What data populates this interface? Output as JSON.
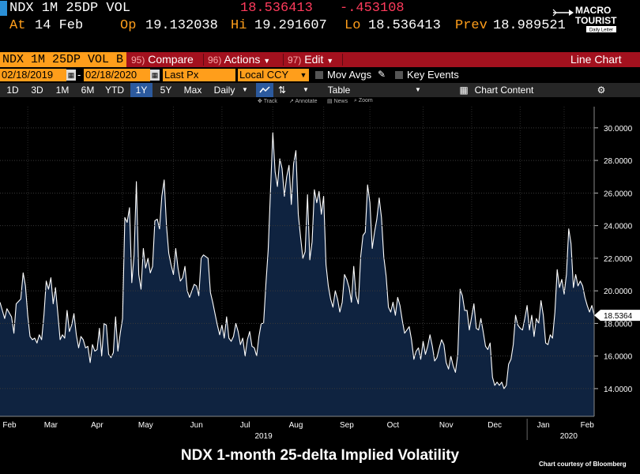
{
  "ticker": {
    "name": "NDX 1M 25DP VOL",
    "last": "18.536413",
    "change": "-.453108"
  },
  "stats": {
    "at_label": "At",
    "at_value": "14 Feb",
    "open_label": "Op",
    "open_value": "19.132038",
    "high_label": "Hi",
    "high_value": "19.291607",
    "low_label": "Lo",
    "low_value": "18.536413",
    "prev_label": "Prev",
    "prev_value": "18.989521"
  },
  "logo": {
    "line1": "MACRO",
    "line2": "TOURIST",
    "tagline": "Daily Letter"
  },
  "menu": {
    "security": "NDX 1M 25DP VOL B",
    "compare_num": "95)",
    "compare_label": "Compare",
    "actions_num": "96)",
    "actions_label": "Actions",
    "edit_num": "97)",
    "edit_label": "Edit",
    "view_label": "Line Chart"
  },
  "dates": {
    "start": "02/18/2019",
    "end": "02/18/2020",
    "field": "Last Px",
    "currency": "Local CCY",
    "mov_avgs": "Mov Avgs",
    "key_events": "Key Events"
  },
  "range": {
    "buttons": [
      "1D",
      "3D",
      "1M",
      "6M",
      "YTD",
      "1Y",
      "5Y",
      "Max"
    ],
    "selected": "1Y",
    "period": "Daily",
    "table": "Table",
    "chart_content": "Chart Content"
  },
  "tools": {
    "track": "Track",
    "annotate": "Annotate",
    "news": "News",
    "zoom": "Zoom"
  },
  "colors": {
    "accent_orange": "#ff9e1b",
    "menu_red": "#a3111e",
    "area_fill": "#0f2340",
    "line": "#ffffff"
  },
  "caption": "NDX 1-month 25-delta Implied Volatility",
  "credit": "Chart courtesy of Bloomberg",
  "chart_data": {
    "type": "area",
    "title": "NDX 1-month 25-delta Implied Volatility",
    "xlabel": "",
    "ylabel": "",
    "ylim": [
      12.3,
      31.3
    ],
    "yticks": [
      14,
      16,
      18,
      20,
      22,
      24,
      26,
      28,
      30
    ],
    "ytick_labels": [
      "14.0000",
      "16.0000",
      "18.0000",
      "20.0000",
      "22.0000",
      "24.0000",
      "26.0000",
      "28.0000",
      "30.0000"
    ],
    "x_index_range": [
      0,
      250
    ],
    "month_labels": [
      {
        "label": "Feb",
        "i": 2
      },
      {
        "label": "Mar",
        "i": 22
      },
      {
        "label": "Apr",
        "i": 42
      },
      {
        "label": "May",
        "i": 63
      },
      {
        "label": "Jun",
        "i": 85
      },
      {
        "label": "Jul",
        "i": 106
      },
      {
        "label": "Aug",
        "i": 128
      },
      {
        "label": "Sep",
        "i": 150
      },
      {
        "label": "Oct",
        "i": 170
      },
      {
        "label": "Nov",
        "i": 193
      },
      {
        "label": "Dec",
        "i": 214
      },
      {
        "label": "Jan",
        "i": 235
      },
      {
        "label": "Feb",
        "i": 254
      }
    ],
    "year_labels": [
      {
        "label": "2019",
        "i": 114
      },
      {
        "label": "2020",
        "i": 246
      }
    ],
    "last_value_label": "18.5364",
    "series": [
      {
        "name": "NDX 1M 25DP VOL",
        "points": [
          [
            0,
            19.3
          ],
          [
            2,
            18.3
          ],
          [
            3,
            18.9
          ],
          [
            5,
            18.4
          ],
          [
            6,
            17.4
          ],
          [
            7,
            19.2
          ],
          [
            9,
            19.5
          ],
          [
            10,
            21.1
          ],
          [
            11,
            20.3
          ],
          [
            12,
            18.5
          ],
          [
            13,
            17.2
          ],
          [
            14,
            17.0
          ],
          [
            15,
            17.1
          ],
          [
            16,
            16.8
          ],
          [
            17,
            17.3
          ],
          [
            18,
            17.0
          ],
          [
            19,
            18.5
          ],
          [
            20,
            20.6
          ],
          [
            21,
            20.1
          ],
          [
            22,
            20.8
          ],
          [
            23,
            19.2
          ],
          [
            24,
            20.2
          ],
          [
            25,
            18.6
          ],
          [
            26,
            17.0
          ],
          [
            27,
            17.3
          ],
          [
            28,
            17.1
          ],
          [
            29,
            18.8
          ],
          [
            30,
            17.5
          ],
          [
            31,
            17.9
          ],
          [
            32,
            18.6
          ],
          [
            33,
            17.3
          ],
          [
            34,
            16.5
          ],
          [
            35,
            17.2
          ],
          [
            36,
            17.0
          ],
          [
            37,
            16.5
          ],
          [
            38,
            16.6
          ],
          [
            39,
            15.6
          ],
          [
            40,
            16.7
          ],
          [
            41,
            16.3
          ],
          [
            42,
            16.4
          ],
          [
            43,
            17.7
          ],
          [
            44,
            16.0
          ],
          [
            45,
            18.0
          ],
          [
            46,
            17.9
          ],
          [
            47,
            16.1
          ],
          [
            48,
            15.9
          ],
          [
            49,
            16.2
          ],
          [
            50,
            18.4
          ],
          [
            51,
            16.3
          ],
          [
            52,
            17.4
          ],
          [
            53,
            18.3
          ],
          [
            54,
            24.5
          ],
          [
            55,
            24.2
          ],
          [
            56,
            25.1
          ],
          [
            57,
            20.5
          ],
          [
            58,
            22.2
          ],
          [
            59,
            26.7
          ],
          [
            60,
            21.0
          ],
          [
            61,
            20.1
          ],
          [
            62,
            22.6
          ],
          [
            63,
            21.4
          ],
          [
            64,
            22.0
          ],
          [
            65,
            21.1
          ],
          [
            66,
            21.5
          ],
          [
            67,
            24.3
          ],
          [
            68,
            24.4
          ],
          [
            69,
            23.8
          ],
          [
            70,
            25.8
          ],
          [
            71,
            26.8
          ],
          [
            72,
            24.0
          ],
          [
            73,
            22.3
          ],
          [
            74,
            21.6
          ],
          [
            75,
            21.0
          ],
          [
            76,
            22.6
          ],
          [
            77,
            21.4
          ],
          [
            78,
            20.6
          ],
          [
            79,
            20.8
          ],
          [
            80,
            21.5
          ],
          [
            81,
            20.0
          ],
          [
            82,
            19.6
          ],
          [
            83,
            20.0
          ],
          [
            84,
            20.4
          ],
          [
            85,
            20.3
          ],
          [
            86,
            19.7
          ],
          [
            87,
            22.0
          ],
          [
            88,
            22.2
          ],
          [
            89,
            22.1
          ],
          [
            90,
            22.0
          ],
          [
            91,
            19.9
          ],
          [
            92,
            19.3
          ],
          [
            93,
            18.6
          ],
          [
            94,
            17.9
          ],
          [
            95,
            17.3
          ],
          [
            96,
            17.9
          ],
          [
            97,
            17.1
          ],
          [
            98,
            18.4
          ],
          [
            99,
            17.1
          ],
          [
            100,
            16.9
          ],
          [
            101,
            17.2
          ],
          [
            102,
            18.0
          ],
          [
            103,
            17.5
          ],
          [
            104,
            16.7
          ],
          [
            105,
            17.1
          ],
          [
            106,
            16.0
          ],
          [
            107,
            17.0
          ],
          [
            108,
            17.5
          ],
          [
            109,
            16.6
          ],
          [
            110,
            16.5
          ],
          [
            111,
            16.0
          ],
          [
            112,
            17.2
          ],
          [
            113,
            18.0
          ],
          [
            114,
            18.0
          ],
          [
            115,
            20.4
          ],
          [
            116,
            22.5
          ],
          [
            117,
            26.2
          ],
          [
            118,
            29.7
          ],
          [
            119,
            27.3
          ],
          [
            120,
            26.4
          ],
          [
            121,
            28.1
          ],
          [
            122,
            27.5
          ],
          [
            123,
            25.8
          ],
          [
            124,
            27.0
          ],
          [
            125,
            27.7
          ],
          [
            126,
            25.3
          ],
          [
            127,
            27.8
          ],
          [
            128,
            28.6
          ],
          [
            129,
            24.7
          ],
          [
            130,
            23.3
          ],
          [
            131,
            22.0
          ],
          [
            132,
            22.4
          ],
          [
            133,
            25.9
          ],
          [
            134,
            21.9
          ],
          [
            135,
            23.0
          ],
          [
            136,
            26.2
          ],
          [
            137,
            25.4
          ],
          [
            138,
            26.1
          ],
          [
            139,
            24.7
          ],
          [
            140,
            25.8
          ],
          [
            141,
            21.6
          ],
          [
            142,
            20.3
          ],
          [
            143,
            19.5
          ],
          [
            144,
            19.0
          ],
          [
            145,
            20.0
          ],
          [
            146,
            19.5
          ],
          [
            147,
            18.7
          ],
          [
            148,
            19.3
          ],
          [
            149,
            21.0
          ],
          [
            150,
            20.7
          ],
          [
            151,
            20.2
          ],
          [
            152,
            19.3
          ],
          [
            153,
            21.5
          ],
          [
            154,
            19.7
          ],
          [
            155,
            19.2
          ],
          [
            156,
            22.1
          ],
          [
            157,
            23.4
          ],
          [
            158,
            23.6
          ],
          [
            159,
            26.5
          ],
          [
            160,
            25.4
          ],
          [
            161,
            22.6
          ],
          [
            162,
            23.6
          ],
          [
            163,
            24.4
          ],
          [
            164,
            25.7
          ],
          [
            165,
            24.5
          ],
          [
            166,
            22.1
          ],
          [
            167,
            20.9
          ],
          [
            168,
            19.0
          ],
          [
            169,
            18.7
          ],
          [
            170,
            19.3
          ],
          [
            171,
            18.5
          ],
          [
            172,
            19.6
          ],
          [
            173,
            19.1
          ],
          [
            174,
            18.2
          ],
          [
            175,
            17.4
          ],
          [
            176,
            17.6
          ],
          [
            177,
            17.8
          ],
          [
            178,
            17.0
          ],
          [
            179,
            15.8
          ],
          [
            180,
            16.3
          ],
          [
            181,
            16.5
          ],
          [
            182,
            15.8
          ],
          [
            183,
            16.9
          ],
          [
            184,
            16.1
          ],
          [
            185,
            16.6
          ],
          [
            186,
            17.3
          ],
          [
            187,
            16.6
          ],
          [
            188,
            15.7
          ],
          [
            189,
            15.9
          ],
          [
            190,
            16.5
          ],
          [
            191,
            17.0
          ],
          [
            192,
            16.7
          ],
          [
            193,
            15.6
          ],
          [
            194,
            15.2
          ],
          [
            195,
            16.0
          ],
          [
            196,
            15.4
          ],
          [
            197,
            15.0
          ],
          [
            198,
            16.1
          ],
          [
            199,
            20.1
          ],
          [
            200,
            19.7
          ],
          [
            201,
            18.8
          ],
          [
            202,
            18.8
          ],
          [
            203,
            17.6
          ],
          [
            204,
            18.4
          ],
          [
            205,
            19.2
          ],
          [
            206,
            17.7
          ],
          [
            207,
            17.6
          ],
          [
            208,
            18.3
          ],
          [
            209,
            17.5
          ],
          [
            210,
            16.6
          ],
          [
            211,
            16.4
          ],
          [
            212,
            16.8
          ],
          [
            213,
            14.7
          ],
          [
            214,
            14.2
          ],
          [
            215,
            14.4
          ],
          [
            216,
            14.2
          ],
          [
            217,
            14.4
          ],
          [
            218,
            14.0
          ],
          [
            219,
            14.2
          ],
          [
            220,
            15.5
          ],
          [
            221,
            15.8
          ],
          [
            222,
            16.7
          ],
          [
            223,
            18.5
          ],
          [
            224,
            17.9
          ],
          [
            225,
            17.7
          ],
          [
            226,
            17.6
          ],
          [
            227,
            18.3
          ],
          [
            228,
            19.1
          ],
          [
            229,
            17.6
          ],
          [
            230,
            18.5
          ],
          [
            231,
            17.2
          ],
          [
            232,
            18.3
          ],
          [
            233,
            18.0
          ],
          [
            234,
            19.4
          ],
          [
            235,
            18.5
          ],
          [
            236,
            16.8
          ],
          [
            237,
            16.7
          ],
          [
            238,
            17.3
          ],
          [
            239,
            17.1
          ],
          [
            240,
            18.7
          ],
          [
            241,
            21.3
          ],
          [
            242,
            20.2
          ],
          [
            243,
            20.7
          ],
          [
            244,
            19.8
          ],
          [
            245,
            21.0
          ],
          [
            246,
            23.8
          ],
          [
            247,
            22.9
          ],
          [
            248,
            20.2
          ],
          [
            249,
            21.0
          ],
          [
            250,
            20.3
          ],
          [
            251,
            20.6
          ],
          [
            252,
            20.3
          ],
          [
            253,
            19.6
          ],
          [
            254,
            19.1
          ],
          [
            255,
            18.7
          ],
          [
            256,
            19.1
          ],
          [
            257,
            18.5
          ]
        ]
      }
    ]
  }
}
